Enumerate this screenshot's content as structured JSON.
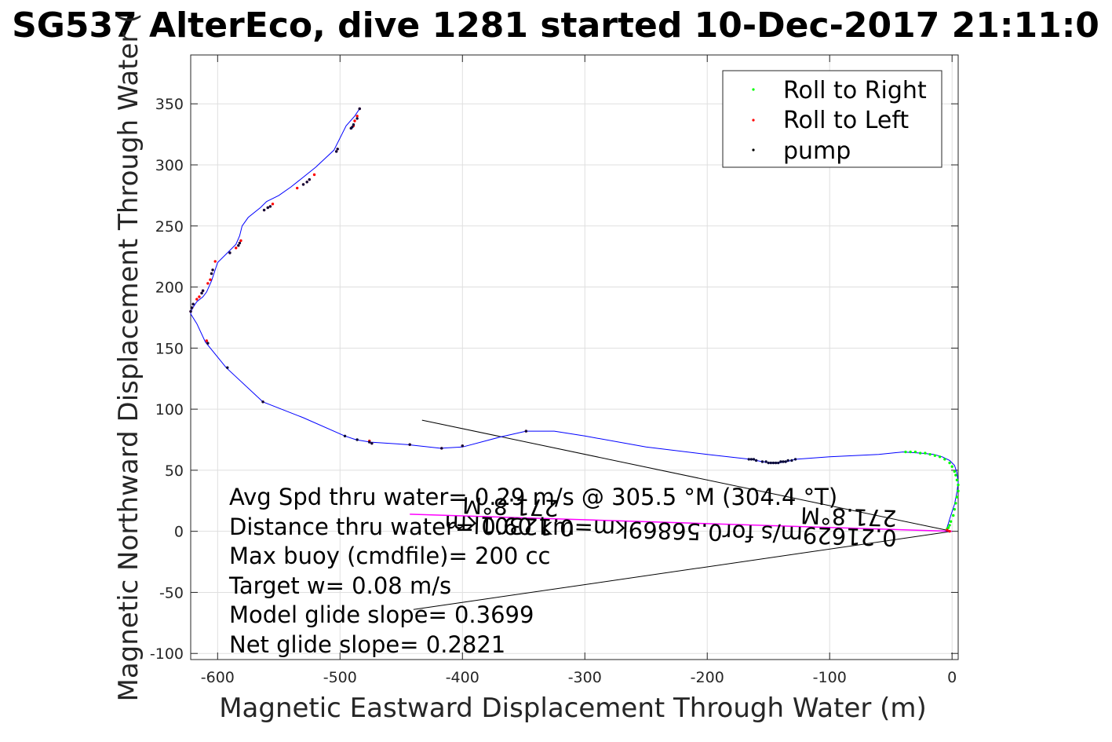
{
  "chart_data": {
    "type": "line",
    "title": "SG537 AlterEco, dive 1281 started 10-Dec-2017 21:11:0",
    "xlabel": "Magnetic Eastward Displacement Through Water (m)",
    "ylabel": "Magnetic Northward Displacement Through Water (",
    "xlim": [
      -622,
      5
    ],
    "ylim": [
      -105,
      390
    ],
    "xticks": [
      -600,
      -500,
      -400,
      -300,
      -200,
      -100,
      0
    ],
    "xtick_labels": [
      "-600",
      "-500",
      "-400",
      "-300",
      "-200",
      "-100",
      "0"
    ],
    "yticks": [
      -100,
      -50,
      0,
      50,
      100,
      150,
      200,
      250,
      300,
      350
    ],
    "ytick_labels": [
      "-100",
      "-50",
      "0",
      "50",
      "100",
      "150",
      "200",
      "250",
      "300",
      "350"
    ],
    "grid": true,
    "legend_position": "top-right",
    "legend": [
      {
        "label": "Roll to Right",
        "color": "#00ff00"
      },
      {
        "label": "Roll to Left",
        "color": "#ff0000"
      },
      {
        "label": "pump",
        "color": "#000000"
      }
    ],
    "colors": {
      "track": "#0000ff",
      "current_vector": "#ff00ff",
      "glide_lines": "#000000"
    },
    "track": {
      "x": [
        -5,
        -2,
        2,
        4,
        5,
        4,
        2,
        -2,
        -8,
        -15,
        -25,
        -40,
        -60,
        -100,
        -128,
        -135,
        -142,
        -148,
        -155,
        -160,
        -165,
        -200,
        -250,
        -300,
        -325,
        -348,
        -370,
        -400,
        -418,
        -445,
        -475,
        -487,
        -496,
        -530,
        -563,
        -593,
        -610,
        -617,
        -622,
        -621,
        -617,
        -612,
        -609,
        -605,
        -600,
        -592,
        -585,
        -582,
        -580,
        -575,
        -565,
        -560,
        -550,
        -540,
        -530,
        -520,
        -505,
        -495,
        -488,
        -484
      ],
      "y": [
        0,
        10,
        22,
        32,
        40,
        48,
        54,
        58,
        61,
        63,
        64,
        65,
        63,
        61,
        59,
        57,
        56,
        56,
        57,
        58,
        59,
        63,
        69,
        78,
        82,
        82,
        77,
        69,
        68,
        71,
        73,
        75,
        78,
        93,
        106,
        134,
        155,
        170,
        178,
        182,
        188,
        192,
        196,
        205,
        220,
        228,
        235,
        242,
        250,
        257,
        265,
        270,
        275,
        282,
        290,
        298,
        312,
        332,
        340,
        346
      ]
    },
    "roll_right": {
      "x": [
        -38,
        -34,
        -30,
        -26,
        -22,
        -18,
        -14,
        -10,
        -6,
        -2,
        0,
        2,
        3,
        4,
        5,
        5,
        4,
        3,
        2,
        1,
        -1,
        -2,
        -3,
        -4
      ],
      "y": [
        65,
        65,
        65,
        64,
        64,
        63,
        62,
        61,
        59,
        56,
        53,
        49,
        46,
        42,
        38,
        33,
        28,
        23,
        18,
        13,
        8,
        5,
        3,
        2
      ]
    },
    "roll_left": {
      "x": [
        -484,
        -486,
        -488,
        -489,
        -491,
        -502,
        -503,
        -521,
        -525,
        -527,
        -530,
        -535,
        -555,
        -557,
        -559,
        -562,
        -581,
        -582,
        -583,
        -585,
        -590,
        -602,
        -604,
        -605,
        -606,
        -608,
        -612,
        -613,
        -615,
        -617,
        -620,
        -621,
        -622,
        -609,
        -608,
        -563,
        -476,
        -474,
        -443,
        -417,
        -400,
        -348,
        -4,
        -2
      ],
      "y": [
        346,
        340,
        336,
        332,
        330,
        313,
        311,
        292,
        288,
        286,
        284,
        281,
        268,
        266,
        265,
        263,
        238,
        236,
        234,
        232,
        228,
        221,
        214,
        211,
        206,
        203,
        197,
        195,
        192,
        190,
        186,
        183,
        180,
        156,
        154,
        106,
        74,
        72,
        71,
        68,
        70,
        82,
        1,
        0
      ]
    },
    "pump": {
      "x": [
        -166,
        -164,
        -162,
        -160,
        -155,
        -152,
        -150,
        -148,
        -146,
        -144,
        -142,
        -140,
        -138,
        -136,
        -134,
        -131,
        -128,
        -484,
        -486,
        -489,
        -490,
        -491,
        -502,
        -503,
        -525,
        -527,
        -530,
        -557,
        -559,
        -562,
        -582,
        -583,
        -590,
        -604,
        -605,
        -612,
        -613,
        -620,
        -621,
        -622,
        -608,
        -592,
        -563,
        -496,
        -486,
        -476,
        -474,
        -443,
        -417,
        -400,
        -348
      ],
      "y": [
        59,
        59,
        59,
        58,
        57,
        57,
        56,
        56,
        56,
        56,
        56,
        57,
        57,
        57,
        58,
        58,
        59,
        346,
        338,
        333,
        331,
        330,
        313,
        311,
        288,
        286,
        284,
        266,
        265,
        263,
        236,
        234,
        228,
        214,
        211,
        197,
        195,
        186,
        183,
        180,
        154,
        134,
        106,
        78,
        75,
        73,
        72,
        71,
        68,
        70,
        82
      ]
    },
    "current_vector": {
      "x": [
        -443,
        0
      ],
      "y": [
        14,
        0
      ]
    },
    "glide_lines": [
      {
        "x": [
          -433,
          0
        ],
        "y": [
          91,
          0
        ]
      },
      {
        "x": [
          -440,
          0
        ],
        "y": [
          -64,
          0
        ]
      }
    ],
    "annotations": [
      "Avg Spd thru water= 0.29 m/s @ 305.5 °M (304.4 °T)",
      "Distance thru water= 0.60 km",
      "Max buoy (cmdfile)= 200 cc",
      "Target w= 0.08 m/s",
      "Model glide slope= 0.3699",
      "Net glide slope= 0.2821"
    ],
    "rotated_annotations": [
      "0.21629m/s for0.56869km=0.12301km",
      "271.8°M",
      "271.8°M"
    ]
  }
}
